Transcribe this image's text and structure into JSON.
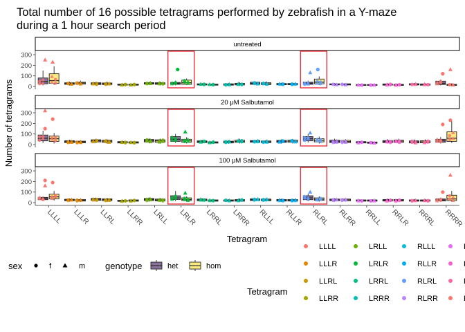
{
  "chart_data": {
    "type": "box",
    "title": "Total number of 16 possible tetragrams performed by zebrafish in a Y-maze during a 1 hour search period",
    "title_lines": [
      "Total number of 16 possible tetragrams performed by zebrafish in a Y-maze",
      "during a 1 hour search period"
    ],
    "xlabel": "Tetragram",
    "ylabel": "Number of tetragrams",
    "ylim": [
      0,
      320
    ],
    "yticks": [
      0,
      100,
      200,
      300
    ],
    "categories": [
      "LLLL",
      "LLLR",
      "LLRL",
      "LLRR",
      "LRLL",
      "LRLR",
      "LRRL",
      "LRRR",
      "RLLL",
      "RLLR",
      "RLRL",
      "RLRR",
      "RRLL",
      "RRLR",
      "RRRL",
      "RRRR"
    ],
    "highlighted_categories": [
      "LRLR",
      "RLRL"
    ],
    "facets": [
      "untreated",
      "20 μM Salbutamol",
      "100 μM Salbutamol"
    ],
    "genotypes": [
      {
        "name": "het",
        "color": "#8a7399"
      },
      {
        "name": "hom",
        "color": "#fbeb7f"
      }
    ],
    "sex_legend": {
      "title": "sex",
      "items": [
        "f",
        "m"
      ]
    },
    "genotype_legend_title": "genotype",
    "tetragram_legend": {
      "title": "Tetragram",
      "columns": [
        [
          "LLLL",
          "LLLR",
          "LLRL",
          "LLRR"
        ],
        [
          "LRLL",
          "LRLR",
          "LRRL",
          "LRRR"
        ],
        [
          "RLLL",
          "RLLR",
          "RLRL",
          "RLRR"
        ],
        [
          "R",
          "R",
          "R",
          "R"
        ]
      ]
    },
    "tetragram_colors": [
      "#f8766d",
      "#e58700",
      "#c99800",
      "#a3a500",
      "#6bb100",
      "#00ba38",
      "#00bf7d",
      "#00c0af",
      "#00bcd8",
      "#00b0f6",
      "#619cff",
      "#b983ff",
      "#e76bf3",
      "#fd61d1",
      "#ff67a4",
      "#f8766d"
    ],
    "boxes": [
      [
        {
          "het": [
            10,
            25,
            45,
            80,
            150
          ],
          "hom": [
            15,
            30,
            55,
            120,
            190
          ]
        },
        {
          "het": [
            10,
            20,
            28,
            35,
            45
          ],
          "hom": [
            12,
            22,
            32,
            40,
            55
          ]
        },
        {
          "het": [
            10,
            18,
            28,
            35,
            45
          ],
          "hom": [
            10,
            18,
            25,
            33,
            45
          ]
        },
        {
          "het": [
            8,
            12,
            18,
            22,
            28
          ],
          "hom": [
            8,
            12,
            18,
            22,
            30
          ]
        },
        {
          "het": [
            18,
            22,
            30,
            36,
            42
          ],
          "hom": [
            10,
            20,
            28,
            35,
            45
          ]
        },
        {
          "het": [
            10,
            20,
            28,
            38,
            55
          ],
          "hom": [
            12,
            20,
            35,
            60,
            75
          ]
        },
        {
          "het": [
            8,
            14,
            20,
            25,
            30
          ],
          "hom": [
            8,
            12,
            18,
            22,
            28
          ]
        },
        {
          "het": [
            8,
            12,
            18,
            25,
            32
          ],
          "hom": [
            8,
            14,
            22,
            30,
            40
          ]
        },
        {
          "het": [
            12,
            20,
            28,
            40,
            50
          ],
          "hom": [
            10,
            18,
            25,
            35,
            48
          ]
        },
        {
          "het": [
            10,
            16,
            22,
            28,
            36
          ],
          "hom": [
            10,
            16,
            22,
            28,
            35
          ]
        },
        {
          "het": [
            12,
            20,
            30,
            40,
            55
          ],
          "hom": [
            15,
            25,
            40,
            70,
            95
          ]
        },
        {
          "het": [
            8,
            15,
            20,
            25,
            32
          ],
          "hom": [
            8,
            14,
            20,
            25,
            32
          ]
        },
        {
          "het": [
            5,
            10,
            14,
            18,
            22
          ],
          "hom": [
            5,
            10,
            14,
            18,
            22
          ]
        },
        {
          "het": [
            8,
            12,
            18,
            24,
            30
          ],
          "hom": [
            6,
            10,
            15,
            20,
            28
          ]
        },
        {
          "het": [
            8,
            14,
            20,
            26,
            32
          ],
          "hom": [
            8,
            12,
            18,
            24,
            30
          ]
        },
        {
          "het": [
            10,
            18,
            30,
            50,
            65
          ],
          "hom": [
            5,
            10,
            15,
            20,
            30
          ]
        }
      ],
      [
        {
          "het": [
            15,
            35,
            60,
            90,
            130
          ],
          "hom": [
            10,
            30,
            55,
            80,
            110
          ]
        },
        {
          "het": [
            10,
            18,
            28,
            36,
            45
          ],
          "hom": [
            8,
            16,
            25,
            32,
            40
          ]
        },
        {
          "het": [
            12,
            25,
            38,
            45,
            55
          ],
          "hom": [
            10,
            20,
            32,
            42,
            50
          ]
        },
        {
          "het": [
            8,
            15,
            22,
            28,
            35
          ],
          "hom": [
            8,
            14,
            20,
            26,
            32
          ]
        },
        {
          "het": [
            12,
            25,
            38,
            48,
            60
          ],
          "hom": [
            10,
            22,
            35,
            45,
            55
          ]
        },
        {
          "het": [
            15,
            30,
            50,
            75,
            100
          ],
          "hom": [
            10,
            22,
            35,
            50,
            70
          ]
        },
        {
          "het": [
            10,
            18,
            28,
            35,
            45
          ],
          "hom": [
            8,
            14,
            20,
            26,
            32
          ]
        },
        {
          "het": [
            8,
            15,
            25,
            32,
            42
          ],
          "hom": [
            10,
            20,
            30,
            42,
            55
          ]
        },
        {
          "het": [
            12,
            22,
            30,
            38,
            45
          ],
          "hom": [
            10,
            18,
            26,
            34,
            42
          ]
        },
        {
          "het": [
            10,
            20,
            30,
            40,
            50
          ],
          "hom": [
            10,
            22,
            32,
            42,
            52
          ]
        },
        {
          "het": [
            20,
            35,
            55,
            75,
            100
          ],
          "hom": [
            10,
            25,
            40,
            55,
            75
          ]
        },
        {
          "het": [
            10,
            18,
            30,
            42,
            55
          ],
          "hom": [
            10,
            18,
            28,
            40,
            52
          ]
        },
        {
          "het": [
            8,
            15,
            22,
            28,
            35
          ],
          "hom": [
            6,
            12,
            18,
            24,
            30
          ]
        },
        {
          "het": [
            10,
            18,
            28,
            38,
            50
          ],
          "hom": [
            10,
            20,
            32,
            42,
            55
          ]
        },
        {
          "het": [
            8,
            15,
            25,
            35,
            48
          ],
          "hom": [
            8,
            16,
            26,
            36,
            48
          ]
        },
        {
          "het": [
            10,
            22,
            35,
            50,
            70
          ],
          "hom": [
            15,
            30,
            60,
            120,
            220
          ]
        }
      ],
      [
        {
          "het": [
            15,
            28,
            40,
            50,
            60
          ],
          "hom": [
            20,
            35,
            55,
            80,
            110
          ]
        },
        {
          "het": [
            10,
            18,
            25,
            32,
            40
          ],
          "hom": [
            8,
            15,
            22,
            30,
            38
          ]
        },
        {
          "het": [
            12,
            22,
            32,
            40,
            48
          ],
          "hom": [
            10,
            18,
            28,
            36,
            45
          ]
        },
        {
          "het": [
            8,
            12,
            18,
            22,
            28
          ],
          "hom": [
            8,
            14,
            20,
            26,
            32
          ]
        },
        {
          "het": [
            10,
            20,
            30,
            40,
            50
          ],
          "hom": [
            8,
            16,
            25,
            34,
            42
          ]
        },
        {
          "het": [
            15,
            30,
            45,
            65,
            110
          ],
          "hom": [
            10,
            20,
            30,
            45,
            60
          ]
        },
        {
          "het": [
            10,
            18,
            26,
            34,
            42
          ],
          "hom": [
            8,
            14,
            20,
            26,
            32
          ]
        },
        {
          "het": [
            8,
            14,
            20,
            26,
            32
          ],
          "hom": [
            8,
            14,
            22,
            30,
            40
          ]
        },
        {
          "het": [
            12,
            20,
            28,
            36,
            45
          ],
          "hom": [
            10,
            18,
            26,
            34,
            42
          ]
        },
        {
          "het": [
            8,
            15,
            22,
            30,
            38
          ],
          "hom": [
            8,
            15,
            22,
            30,
            38
          ]
        },
        {
          "het": [
            15,
            28,
            45,
            65,
            85
          ],
          "hom": [
            10,
            22,
            32,
            45,
            60
          ]
        },
        {
          "het": [
            10,
            18,
            26,
            34,
            42
          ],
          "hom": [
            10,
            18,
            26,
            34,
            42
          ]
        },
        {
          "het": [
            8,
            14,
            20,
            26,
            32
          ],
          "hom": [
            8,
            14,
            20,
            26,
            32
          ]
        },
        {
          "het": [
            8,
            15,
            22,
            30,
            38
          ],
          "hom": [
            8,
            15,
            22,
            30,
            38
          ]
        },
        {
          "het": [
            8,
            14,
            20,
            26,
            34
          ],
          "hom": [
            8,
            14,
            20,
            26,
            34
          ]
        },
        {
          "het": [
            8,
            16,
            25,
            35,
            45
          ],
          "hom": [
            10,
            20,
            35,
            70,
            110
          ]
        }
      ]
    ],
    "outliers": [
      [
        {
          "cat": "LLLL",
          "y": 250,
          "shape": "triangle"
        },
        {
          "cat": "LLLL",
          "y": 230,
          "shape": "triangle"
        },
        {
          "cat": "LRLR",
          "y": 160,
          "shape": "circle"
        },
        {
          "cat": "RLRL",
          "y": 160,
          "shape": "circle"
        },
        {
          "cat": "RLRL",
          "y": 130,
          "shape": "triangle"
        },
        {
          "cat": "RRRR",
          "y": 160,
          "shape": "triangle"
        },
        {
          "cat": "RRRR",
          "y": 120,
          "shape": "circle"
        }
      ],
      [
        {
          "cat": "LLLL",
          "y": 320,
          "shape": "triangle"
        },
        {
          "cat": "LLLL",
          "y": 240,
          "shape": "circle"
        },
        {
          "cat": "LLLL",
          "y": 150,
          "shape": "circle"
        },
        {
          "cat": "LRLR",
          "y": 120,
          "shape": "triangle"
        },
        {
          "cat": "RLRL",
          "y": 110,
          "shape": "triangle"
        },
        {
          "cat": "RRRR",
          "y": 230,
          "shape": "circle"
        },
        {
          "cat": "RRRR",
          "y": 190,
          "shape": "circle"
        }
      ],
      [
        {
          "cat": "LLLL",
          "y": 210,
          "shape": "circle"
        },
        {
          "cat": "LLLL",
          "y": 190,
          "shape": "circle"
        },
        {
          "cat": "LLLL",
          "y": 160,
          "shape": "triangle"
        },
        {
          "cat": "LRLR",
          "y": 90,
          "shape": "triangle"
        },
        {
          "cat": "RLRL",
          "y": 100,
          "shape": "triangle"
        },
        {
          "cat": "RRRR",
          "y": 260,
          "shape": "triangle"
        },
        {
          "cat": "RRRR",
          "y": 100,
          "shape": "circle"
        }
      ]
    ]
  }
}
